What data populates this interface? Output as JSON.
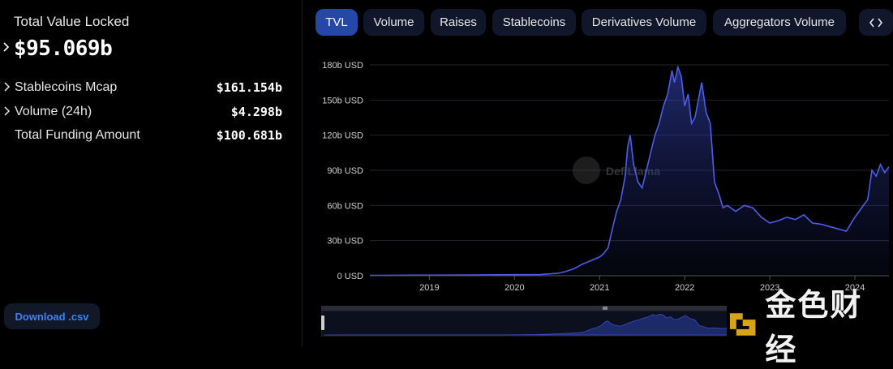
{
  "sidebar": {
    "tvl_label": "Total Value Locked",
    "tvl_value": "$95.069b",
    "stats": [
      {
        "label": "Stablecoins Mcap",
        "value": "$161.154b",
        "expandable": true
      },
      {
        "label": "Volume (24h)",
        "value": "$4.298b",
        "expandable": true
      },
      {
        "label": "Total Funding Amount",
        "value": "$100.681b",
        "expandable": false
      }
    ],
    "download_label": "Download .csv"
  },
  "tabs": [
    "TVL",
    "Volume",
    "Raises",
    "Stablecoins",
    "Derivatives Volume",
    "Aggregators Volume"
  ],
  "active_tab": "TVL",
  "embed_icon": "code-icon",
  "watermark": {
    "logo_text": "DefiLlama",
    "corner_text": "金色财经"
  },
  "colors": {
    "line": "#4a5fe8",
    "active_tab": "#2547a8",
    "download_text": "#3b82f6",
    "watermark_gold": "#d9a21b"
  },
  "chart_data": {
    "type": "area",
    "title": "",
    "xlabel": "",
    "ylabel": "",
    "y_unit": "USD",
    "ylim": [
      0,
      180
    ],
    "yticks": [
      "0 USD",
      "30b USD",
      "60b USD",
      "90b USD",
      "120b USD",
      "150b USD",
      "180b USD"
    ],
    "xticks": [
      "2019",
      "2020",
      "2021",
      "2022",
      "2023",
      "2024"
    ],
    "xlim": [
      2018.3,
      2024.4
    ],
    "grid": true,
    "series": [
      {
        "values_unit": "billion USD",
        "x": [
          2018.3,
          2018.6,
          2019.0,
          2019.5,
          2020.0,
          2020.3,
          2020.5,
          2020.6,
          2020.7,
          2020.8,
          2020.9,
          2021.0,
          2021.05,
          2021.1,
          2021.15,
          2021.2,
          2021.25,
          2021.3,
          2021.33,
          2021.36,
          2021.4,
          2021.45,
          2021.5,
          2021.55,
          2021.6,
          2021.65,
          2021.7,
          2021.75,
          2021.8,
          2021.85,
          2021.88,
          2021.92,
          2021.96,
          2022.0,
          2022.04,
          2022.08,
          2022.12,
          2022.16,
          2022.2,
          2022.25,
          2022.3,
          2022.35,
          2022.4,
          2022.45,
          2022.5,
          2022.6,
          2022.7,
          2022.8,
          2022.9,
          2023.0,
          2023.1,
          2023.2,
          2023.3,
          2023.4,
          2023.5,
          2023.6,
          2023.7,
          2023.8,
          2023.9,
          2024.0,
          2024.05,
          2024.1,
          2024.15,
          2024.2,
          2024.25,
          2024.3,
          2024.35,
          2024.4
        ],
        "values": [
          0.3,
          0.4,
          0.5,
          0.7,
          0.9,
          1.0,
          2.0,
          3.5,
          6.0,
          10.0,
          13.0,
          16.0,
          19.0,
          24.0,
          40.0,
          55.0,
          65.0,
          85.0,
          110.0,
          120.0,
          95.0,
          80.0,
          75.0,
          90.0,
          105.0,
          120.0,
          130.0,
          145.0,
          155.0,
          175.0,
          165.0,
          178.0,
          170.0,
          145.0,
          155.0,
          130.0,
          135.0,
          150.0,
          165.0,
          140.0,
          130.0,
          80.0,
          70.0,
          58.0,
          60.0,
          55.0,
          60.0,
          58.0,
          50.0,
          45.0,
          47.0,
          50.0,
          48.0,
          52.0,
          45.0,
          44.0,
          42.0,
          40.0,
          38.0,
          50.0,
          55.0,
          60.0,
          65.0,
          90.0,
          85.0,
          95.0,
          88.0,
          93.0
        ]
      }
    ]
  }
}
